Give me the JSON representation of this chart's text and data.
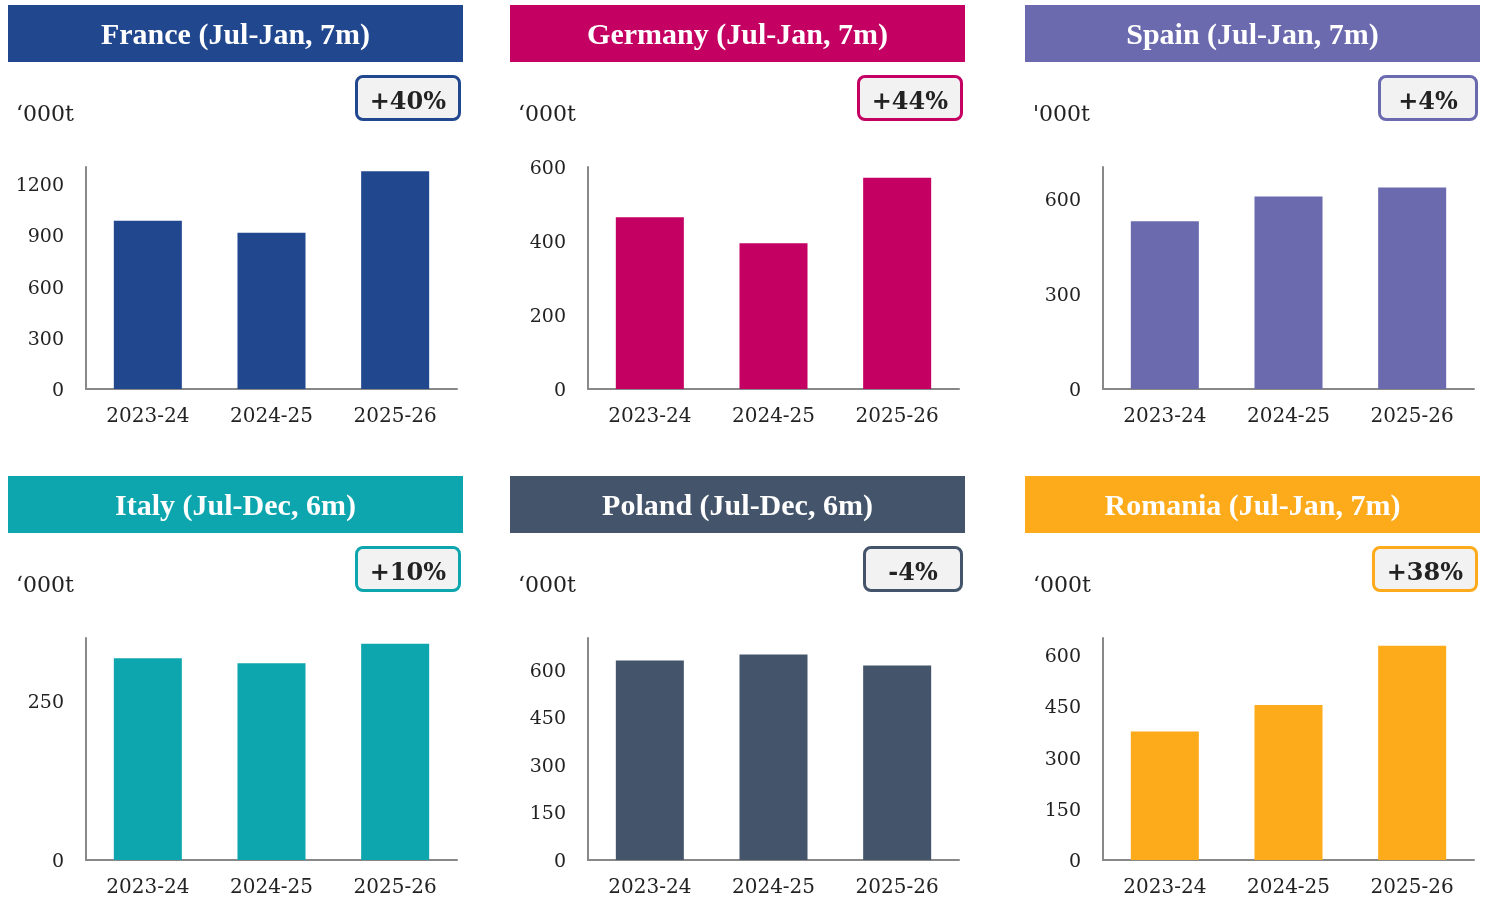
{
  "chart_data": [
    {
      "type": "bar",
      "title": "France (Jul-Jan, 7m)",
      "ylabel": "‘000t",
      "categories": [
        "2023-24",
        "2024-25",
        "2025-26"
      ],
      "values": [
        985,
        915,
        1275
      ],
      "color": "#21488f",
      "ylim": [
        0,
        1300
      ],
      "yticks": [
        0,
        300,
        600,
        900,
        1200
      ],
      "annotations": [
        "+40%"
      ]
    },
    {
      "type": "bar",
      "title": "Germany (Jul-Jan, 7m)",
      "ylabel": "‘000t",
      "categories": [
        "2023-24",
        "2024-25",
        "2025-26"
      ],
      "values": [
        464,
        394,
        571
      ],
      "color": "#c40063",
      "ylim": [
        0,
        600
      ],
      "yticks": [
        0,
        200,
        400,
        600
      ],
      "annotations": [
        "+44%"
      ]
    },
    {
      "type": "bar",
      "title": "Spain (Jul-Jan, 7m)",
      "ylabel": "'000t",
      "categories": [
        "2023-24",
        "2024-25",
        "2025-26"
      ],
      "values": [
        529,
        607,
        635
      ],
      "color": "#6b6aaf",
      "ylim": [
        0,
        700
      ],
      "yticks": [
        0,
        300,
        600
      ],
      "annotations": [
        "+4%"
      ]
    },
    {
      "type": "bar",
      "title": "Italy (Jul-Dec, 6m)",
      "ylabel": "‘000t",
      "categories": [
        "2023-24",
        "2024-25",
        "2025-26"
      ],
      "values": [
        318,
        310,
        341
      ],
      "color": "#0ea6ae",
      "ylim": [
        0,
        350
      ],
      "yticks": [
        0,
        250
      ],
      "annotations": [
        "+10%"
      ]
    },
    {
      "type": "bar",
      "title": "Poland (Jul-Dec, 6m)",
      "ylabel": "‘000t",
      "categories": [
        "2023-24",
        "2024-25",
        "2025-26"
      ],
      "values": [
        629,
        648,
        613
      ],
      "color": "#44546a",
      "ylim": [
        0,
        700
      ],
      "yticks": [
        0,
        150,
        300,
        450,
        600
      ],
      "annotations": [
        "-4%"
      ]
    },
    {
      "type": "bar",
      "title": "Romania (Jul-Jan, 7m)",
      "ylabel": "‘000t",
      "categories": [
        "2023-24",
        "2024-25",
        "2025-26"
      ],
      "values": [
        376,
        454,
        627
      ],
      "color": "#fdaa1b",
      "ylim": [
        0,
        650
      ],
      "yticks": [
        0,
        150,
        300,
        450,
        600
      ],
      "annotations": [
        "+38%"
      ]
    }
  ]
}
